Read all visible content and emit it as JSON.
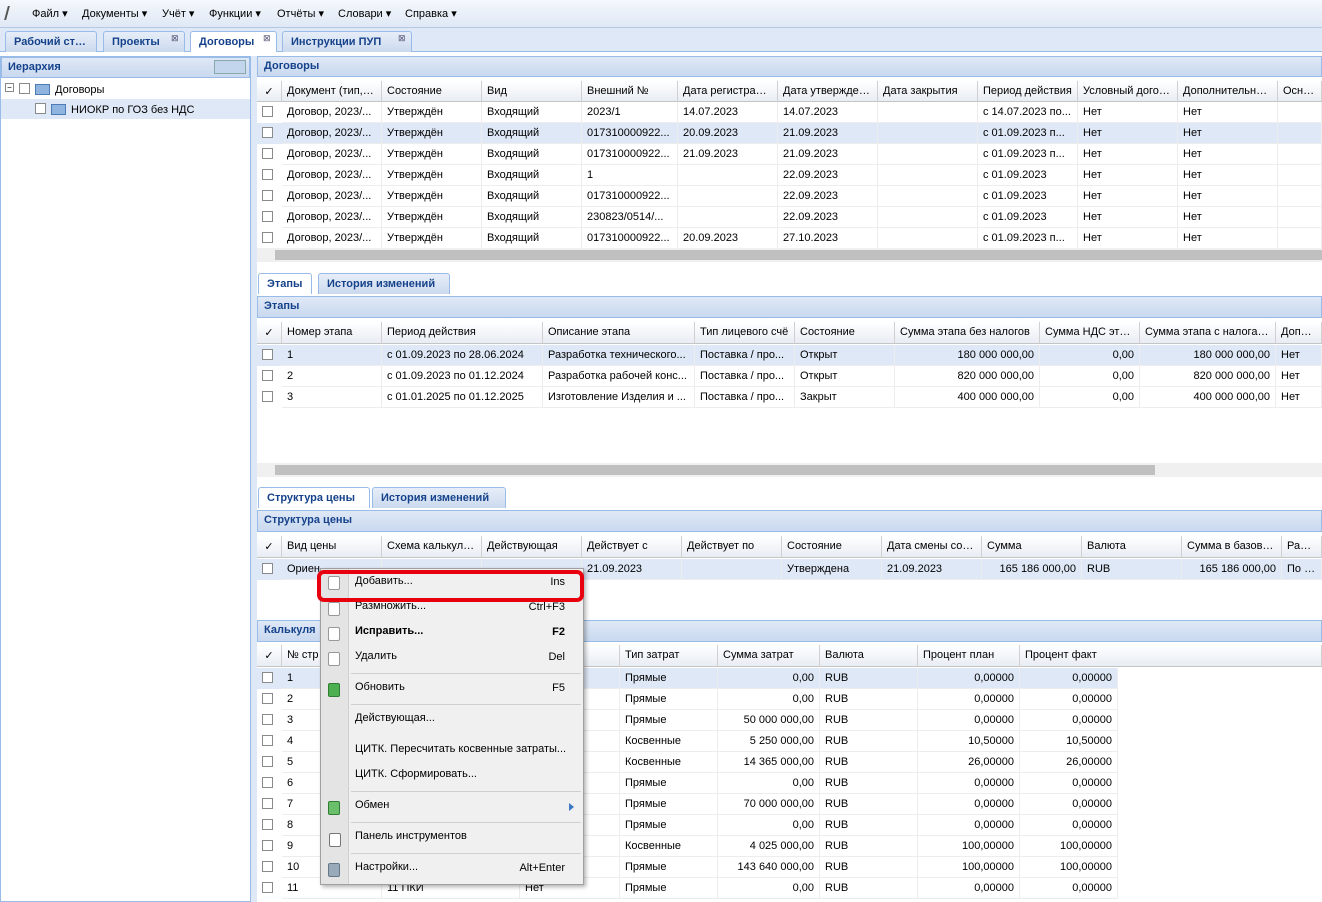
{
  "menu": [
    "Файл",
    "Документы",
    "Учёт",
    "Функции",
    "Отчёты",
    "Словари",
    "Справка"
  ],
  "tabs": [
    "Рабочий стол",
    "Проекты",
    "Договоры",
    "Инструкции ПУП"
  ],
  "hierarchy": {
    "title": "Иерархия",
    "nodes": [
      "Договоры",
      "НИОКР по ГОЗ без НДС"
    ]
  },
  "contracts": {
    "title": "Договоры",
    "columns": [
      "Документ (тип, №",
      "Состояние",
      "Вид",
      "Внешний №",
      "Дата регистрации...",
      "Дата утверждения",
      "Дата закрытия",
      "Период действия",
      "Условный договор",
      "Дополнительное с",
      "Основн"
    ],
    "rows": [
      [
        "Договор, 2023/...",
        "Утверждён",
        "Входящий",
        "2023/1",
        "14.07.2023",
        "14.07.2023",
        null,
        "с 14.07.2023 по...",
        "Нет",
        "Нет",
        null
      ],
      [
        "Договор, 2023/...",
        "Утверждён",
        "Входящий",
        "017310000922...",
        "20.09.2023",
        "21.09.2023",
        null,
        "с 01.09.2023 п...",
        "Нет",
        "Нет",
        null
      ],
      [
        "Договор, 2023/...",
        "Утверждён",
        "Входящий",
        "017310000922...",
        "21.09.2023",
        "21.09.2023",
        null,
        "с 01.09.2023 п...",
        "Нет",
        "Нет",
        null
      ],
      [
        "Договор, 2023/...",
        "Утверждён",
        "Входящий",
        "1",
        null,
        "22.09.2023",
        null,
        "с 01.09.2023",
        "Нет",
        "Нет",
        null
      ],
      [
        "Договор, 2023/...",
        "Утверждён",
        "Входящий",
        "017310000922...",
        null,
        "22.09.2023",
        null,
        "с 01.09.2023",
        "Нет",
        "Нет",
        null
      ],
      [
        "Договор, 2023/...",
        "Утверждён",
        "Входящий",
        "230823/0514/...",
        null,
        "22.09.2023",
        null,
        "с 01.09.2023",
        "Нет",
        "Нет",
        null
      ],
      [
        "Договор, 2023/...",
        "Утверждён",
        "Входящий",
        "017310000922...",
        "20.09.2023",
        "27.10.2023",
        null,
        "с 01.09.2023 п...",
        "Нет",
        "Нет",
        null
      ]
    ]
  },
  "stage_tabs": [
    "Этапы",
    "История изменений"
  ],
  "stages": {
    "title": "Этапы",
    "columns": [
      "Номер этапа",
      "Период действия",
      "Описание этапа",
      "Тип лицевого счё",
      "Состояние",
      "Сумма этапа без налогов",
      "Сумма НДС этапа",
      "Сумма этапа с налогами",
      "Дополн"
    ],
    "rows": [
      [
        "1",
        "с 01.09.2023 по 28.06.2024",
        "Разработка технического...",
        "Поставка / про...",
        "Открыт",
        "180 000 000,00",
        "0,00",
        "180 000 000,00",
        "Нет"
      ],
      [
        "2",
        "с 01.09.2023 по 01.12.2024",
        "Разработка рабочей конс...",
        "Поставка / про...",
        "Открыт",
        "820 000 000,00",
        "0,00",
        "820 000 000,00",
        "Нет"
      ],
      [
        "3",
        "с 01.01.2025 по 01.12.2025",
        "Изготовление Изделия и ...",
        "Поставка / про...",
        "Закрыт",
        "400 000 000,00",
        "0,00",
        "400 000 000,00",
        "Нет"
      ]
    ]
  },
  "price_tabs": [
    "Структура цены",
    "История изменений"
  ],
  "price": {
    "title": "Структура цены",
    "columns": [
      "Вид цены",
      "Схема калькуляци",
      "Действующая",
      "Действует с",
      "Действует по",
      "Состояние",
      "Дата смены состо",
      "Сумма",
      "Валюта",
      "Сумма в базовой в",
      "Расчёт"
    ],
    "rows": [
      [
        "Ориен",
        null,
        null,
        "21.09.2023",
        null,
        "Утверждена",
        "21.09.2023",
        "165 186 000,00",
        "RUB",
        "165 186 000,00",
        "По пря"
      ]
    ]
  },
  "calc": {
    "title": "Калькуля",
    "columns": [
      "№ стр",
      null,
      null,
      "Тип затрат",
      "Сумма затрат",
      "Валюта",
      "Процент план",
      "Процент факт"
    ],
    "rows": [
      [
        "1",
        null,
        null,
        "Прямые",
        "0,00",
        "RUB",
        "0,00000",
        "0,00000"
      ],
      [
        "2",
        null,
        null,
        "Прямые",
        "0,00",
        "RUB",
        "0,00000",
        "0,00000"
      ],
      [
        "3",
        null,
        null,
        "Прямые",
        "50 000 000,00",
        "RUB",
        "0,00000",
        "0,00000"
      ],
      [
        "4",
        null,
        null,
        "Косвенные",
        "5 250 000,00",
        "RUB",
        "10,50000",
        "10,50000"
      ],
      [
        "5",
        null,
        null,
        "Косвенные",
        "14 365 000,00",
        "RUB",
        "26,00000",
        "26,00000"
      ],
      [
        "6",
        null,
        null,
        "Прямые",
        "0,00",
        "RUB",
        "0,00000",
        "0,00000"
      ],
      [
        "7",
        null,
        null,
        "Прямые",
        "70 000 000,00",
        "RUB",
        "0,00000",
        "0,00000"
      ],
      [
        "8",
        null,
        null,
        "Прямые",
        "0,00",
        "RUB",
        "0,00000",
        "0,00000"
      ],
      [
        "9",
        null,
        null,
        "Косвенные",
        "4 025 000,00",
        "RUB",
        "100,00000",
        "100,00000"
      ],
      [
        "10",
        null,
        null,
        "Прямые",
        "143 640 000,00",
        "RUB",
        "100,00000",
        "100,00000"
      ],
      [
        "11",
        "11 ПКИ",
        "Нет",
        "Прямые",
        "0,00",
        "RUB",
        "0,00000",
        "0,00000"
      ]
    ]
  },
  "context_menu": [
    {
      "label": "Добавить...",
      "shortcut": "Ins"
    },
    {
      "label": "Размножить...",
      "shortcut": "Ctrl+F3"
    },
    {
      "label": "Исправить...",
      "shortcut": "F2"
    },
    {
      "label": "Удалить",
      "shortcut": "Del"
    },
    {
      "label": "Обновить",
      "shortcut": "F5"
    },
    {
      "label": "Действующая..."
    },
    {
      "label": "ЦИТК. Пересчитать косвенные затраты..."
    },
    {
      "label": "ЦИТК. Сформировать..."
    },
    {
      "label": "Обмен"
    },
    {
      "label": "Панель инструментов"
    },
    {
      "label": "Настройки...",
      "shortcut": "Alt+Enter"
    }
  ]
}
